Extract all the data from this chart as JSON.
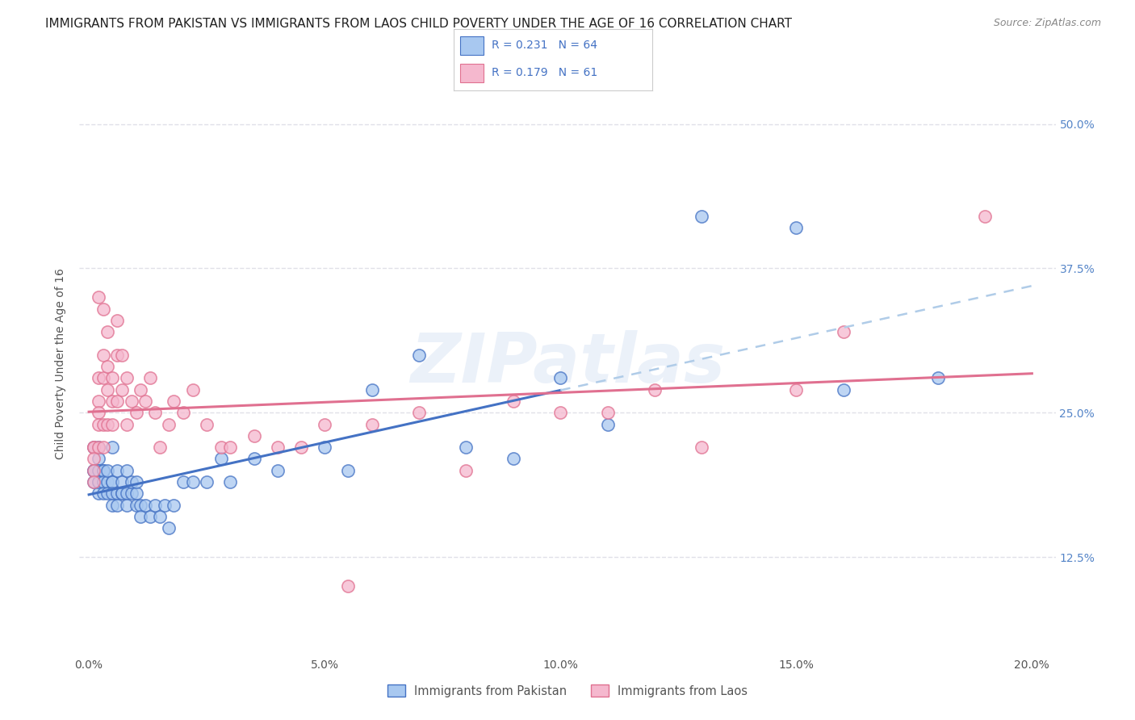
{
  "title": "IMMIGRANTS FROM PAKISTAN VS IMMIGRANTS FROM LAOS CHILD POVERTY UNDER THE AGE OF 16 CORRELATION CHART",
  "source": "Source: ZipAtlas.com",
  "xlabel_ticks": [
    "0.0%",
    "",
    "5.0%",
    "",
    "10.0%",
    "",
    "15.0%",
    "",
    "20.0%"
  ],
  "xtick_vals": [
    0.0,
    0.025,
    0.05,
    0.075,
    0.1,
    0.125,
    0.15,
    0.175,
    0.2
  ],
  "ylabel_ticks": [
    "12.5%",
    "25.0%",
    "37.5%",
    "50.0%"
  ],
  "ytick_vals": [
    0.125,
    0.25,
    0.375,
    0.5
  ],
  "ylabel_label": "Child Poverty Under the Age of 16",
  "xlim": [
    -0.002,
    0.205
  ],
  "ylim": [
    0.04,
    0.545
  ],
  "watermark": "ZIPatlas",
  "pakistan_scatter_color": "#a8c8f0",
  "laos_scatter_color": "#f5b8ce",
  "pakistan_line_color": "#4472c4",
  "laos_line_color": "#e07090",
  "pakistan_dashed_color": "#b0cce8",
  "grid_color": "#e0e0e8",
  "background_color": "#ffffff",
  "title_fontsize": 11,
  "axis_label_fontsize": 10,
  "tick_fontsize": 10,
  "pakistan_x": [
    0.001,
    0.001,
    0.001,
    0.001,
    0.002,
    0.002,
    0.002,
    0.002,
    0.002,
    0.002,
    0.003,
    0.003,
    0.003,
    0.003,
    0.004,
    0.004,
    0.004,
    0.005,
    0.005,
    0.005,
    0.005,
    0.005,
    0.006,
    0.006,
    0.006,
    0.007,
    0.007,
    0.007,
    0.008,
    0.008,
    0.008,
    0.009,
    0.009,
    0.01,
    0.01,
    0.01,
    0.011,
    0.011,
    0.012,
    0.013,
    0.014,
    0.015,
    0.016,
    0.017,
    0.018,
    0.02,
    0.022,
    0.025,
    0.028,
    0.03,
    0.035,
    0.04,
    0.05,
    0.055,
    0.06,
    0.07,
    0.08,
    0.09,
    0.1,
    0.11,
    0.13,
    0.15,
    0.16,
    0.18
  ],
  "pakistan_y": [
    0.22,
    0.2,
    0.2,
    0.19,
    0.22,
    0.21,
    0.2,
    0.19,
    0.18,
    0.19,
    0.2,
    0.2,
    0.19,
    0.18,
    0.19,
    0.2,
    0.18,
    0.22,
    0.19,
    0.19,
    0.18,
    0.17,
    0.2,
    0.18,
    0.17,
    0.18,
    0.18,
    0.19,
    0.2,
    0.18,
    0.17,
    0.18,
    0.19,
    0.18,
    0.19,
    0.17,
    0.17,
    0.16,
    0.17,
    0.16,
    0.17,
    0.16,
    0.17,
    0.15,
    0.17,
    0.19,
    0.19,
    0.19,
    0.21,
    0.19,
    0.21,
    0.2,
    0.22,
    0.2,
    0.27,
    0.3,
    0.22,
    0.21,
    0.28,
    0.24,
    0.42,
    0.41,
    0.27,
    0.28
  ],
  "laos_x": [
    0.001,
    0.001,
    0.001,
    0.001,
    0.001,
    0.002,
    0.002,
    0.002,
    0.002,
    0.002,
    0.002,
    0.003,
    0.003,
    0.003,
    0.003,
    0.003,
    0.004,
    0.004,
    0.004,
    0.004,
    0.005,
    0.005,
    0.005,
    0.006,
    0.006,
    0.006,
    0.007,
    0.007,
    0.008,
    0.008,
    0.009,
    0.01,
    0.011,
    0.012,
    0.013,
    0.014,
    0.015,
    0.017,
    0.018,
    0.02,
    0.022,
    0.025,
    0.028,
    0.03,
    0.035,
    0.04,
    0.045,
    0.05,
    0.055,
    0.06,
    0.07,
    0.08,
    0.09,
    0.1,
    0.11,
    0.12,
    0.13,
    0.15,
    0.16,
    0.19
  ],
  "laos_y": [
    0.22,
    0.22,
    0.21,
    0.2,
    0.19,
    0.35,
    0.28,
    0.26,
    0.25,
    0.24,
    0.22,
    0.34,
    0.3,
    0.28,
    0.24,
    0.22,
    0.32,
    0.29,
    0.27,
    0.24,
    0.28,
    0.26,
    0.24,
    0.33,
    0.3,
    0.26,
    0.3,
    0.27,
    0.28,
    0.24,
    0.26,
    0.25,
    0.27,
    0.26,
    0.28,
    0.25,
    0.22,
    0.24,
    0.26,
    0.25,
    0.27,
    0.24,
    0.22,
    0.22,
    0.23,
    0.22,
    0.22,
    0.24,
    0.1,
    0.24,
    0.25,
    0.2,
    0.26,
    0.25,
    0.25,
    0.27,
    0.22,
    0.27,
    0.32,
    0.42
  ],
  "legend_bottom": [
    {
      "label": "Immigrants from Pakistan",
      "color_face": "#a8c8f0",
      "color_edge": "#4472c4"
    },
    {
      "label": "Immigrants from Laos",
      "color_face": "#f5b8ce",
      "color_edge": "#e07090"
    }
  ]
}
